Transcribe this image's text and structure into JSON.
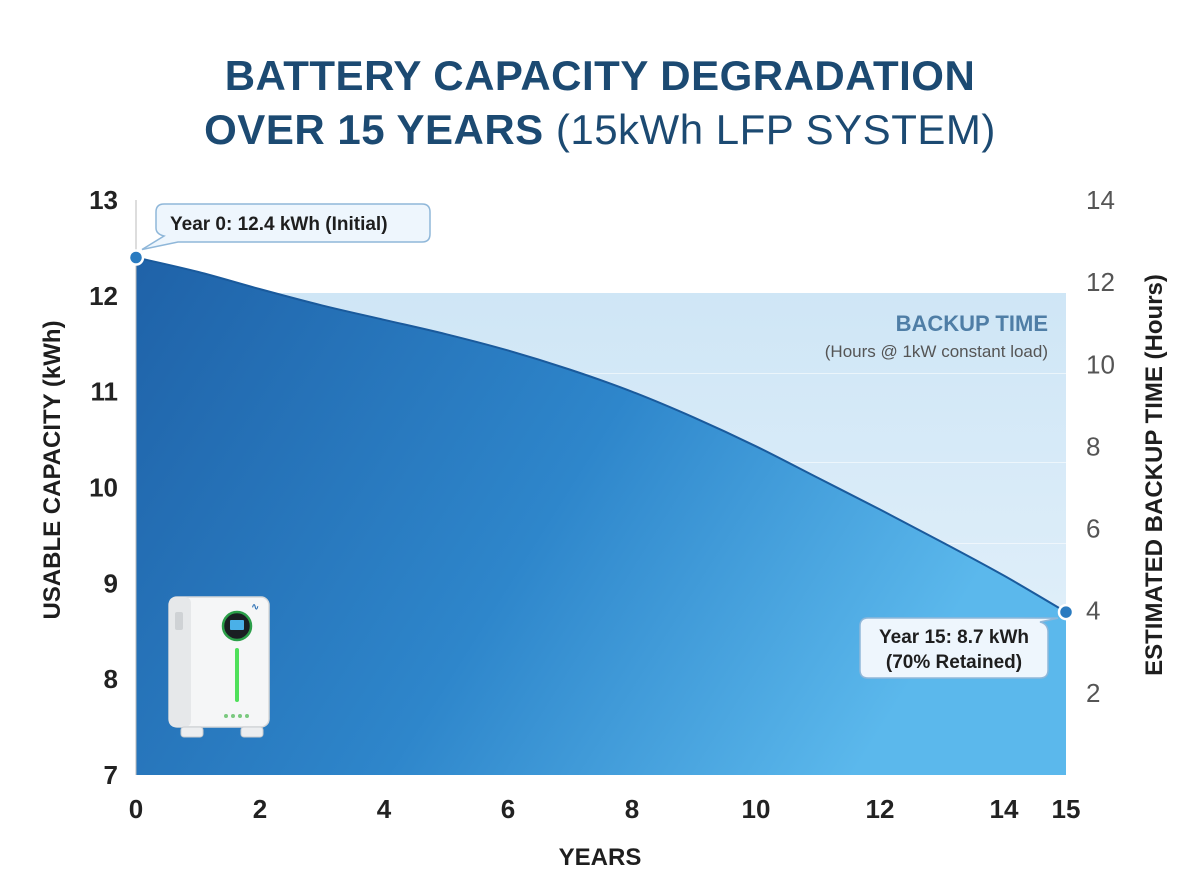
{
  "chart_data": {
    "type": "area",
    "title_line1": "BATTERY CAPACITY DEGRADATION",
    "title_line2_bold": "OVER 15 YEARS",
    "title_line2_rest": "(15kWh LFP SYSTEM)",
    "xlabel": "YEARS",
    "ylabel_left": "USABLE CAPACITY (kWh)",
    "ylabel_right": "ESTIMATED BACKUP TIME (Hours)",
    "x_ticks": [
      0,
      2,
      4,
      6,
      8,
      10,
      12,
      14,
      15
    ],
    "y_ticks_left": [
      7,
      8,
      9,
      10,
      11,
      12,
      13
    ],
    "y_ticks_right": [
      2,
      4,
      6,
      8,
      10,
      12,
      14
    ],
    "xlim": [
      0,
      15
    ],
    "ylim_left": [
      7,
      13
    ],
    "ylim_right": [
      0,
      14
    ],
    "series": [
      {
        "name": "Usable capacity",
        "x": [
          0,
          1,
          2,
          3,
          4,
          5,
          6,
          7,
          8,
          9,
          10,
          11,
          12,
          13,
          14,
          15
        ],
        "y": [
          12.4,
          12.25,
          12.07,
          11.9,
          11.75,
          11.6,
          11.43,
          11.23,
          11.0,
          10.73,
          10.43,
          10.1,
          9.77,
          9.43,
          9.08,
          8.7
        ]
      }
    ],
    "backup_panel": {
      "title": "BACKUP TIME",
      "subtitle": "(Hours @ 1kW constant load)"
    },
    "annotations": [
      {
        "x": 0,
        "y": 12.4,
        "lines": [
          "Year 0: 12.4 kWh (Initial)"
        ]
      },
      {
        "x": 15,
        "y": 8.7,
        "lines": [
          "Year 15: 8.7 kWh",
          "(70% Retained)"
        ]
      }
    ],
    "colors": {
      "title": "#1c4a72",
      "area_dark": "#1f66ad",
      "area_light": "#5db8ec",
      "panel": "#d8ebf8",
      "axis_text": "#3a3a3a",
      "marker": "#2a7bc0"
    }
  }
}
